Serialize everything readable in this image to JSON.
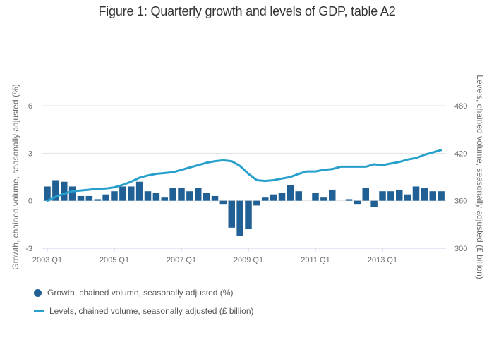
{
  "chart_data": {
    "type": "bar+line",
    "title": "Figure 1: Quarterly growth and levels of GDP, table A2",
    "xlabel": "",
    "ylabel_left": "Growth, chained volume, seasonally adjusted (%)",
    "ylabel_right": "Levels, chained volume, seasonally adjusted (£ billion)",
    "ylim_left": [
      -3,
      6
    ],
    "ylim_right": [
      300,
      480
    ],
    "yticks_left": [
      -3,
      0,
      3,
      6
    ],
    "yticks_right": [
      300,
      360,
      420,
      480
    ],
    "xtick_labels": [
      "2003 Q1",
      "2005 Q1",
      "2007 Q1",
      "2009 Q1",
      "2011 Q1",
      "2013 Q1"
    ],
    "grid": true,
    "legend_position": "bottom-left",
    "colors": {
      "growth": "#206095",
      "levels": "#27a0cc",
      "grid": "#e3e3e3",
      "axis": "#c7d1e4"
    },
    "categories": [
      "2003 Q1",
      "2003 Q2",
      "2003 Q3",
      "2003 Q4",
      "2004 Q1",
      "2004 Q2",
      "2004 Q3",
      "2004 Q4",
      "2005 Q1",
      "2005 Q2",
      "2005 Q3",
      "2005 Q4",
      "2006 Q1",
      "2006 Q2",
      "2006 Q3",
      "2006 Q4",
      "2007 Q1",
      "2007 Q2",
      "2007 Q3",
      "2007 Q4",
      "2008 Q1",
      "2008 Q2",
      "2008 Q3",
      "2008 Q4",
      "2009 Q1",
      "2009 Q2",
      "2009 Q3",
      "2009 Q4",
      "2010 Q1",
      "2010 Q2",
      "2010 Q3",
      "2010 Q4",
      "2011 Q1",
      "2011 Q2",
      "2011 Q3",
      "2011 Q4",
      "2012 Q1",
      "2012 Q2",
      "2012 Q3",
      "2012 Q4",
      "2013 Q1",
      "2013 Q2",
      "2013 Q3",
      "2013 Q4",
      "2014 Q1",
      "2014 Q2",
      "2014 Q3",
      "2014 Q4"
    ],
    "series": [
      {
        "name": "Growth, chained volume, seasonally adjusted (%)",
        "type": "bar",
        "axis": "left",
        "values": [
          0.9,
          1.3,
          1.2,
          0.9,
          0.3,
          0.3,
          0.1,
          0.4,
          0.6,
          0.9,
          0.9,
          1.2,
          0.6,
          0.5,
          0.2,
          0.8,
          0.8,
          0.6,
          0.8,
          0.5,
          0.3,
          -0.2,
          -1.7,
          -2.2,
          -1.8,
          -0.3,
          0.2,
          0.4,
          0.5,
          1.0,
          0.6,
          0.0,
          0.5,
          0.2,
          0.7,
          0.0,
          0.1,
          -0.2,
          0.8,
          -0.4,
          0.6,
          0.6,
          0.7,
          0.4,
          0.9,
          0.8,
          0.6,
          0.6
        ]
      },
      {
        "name": "Levels, chained volume, seasonally adjusted (£ billion)",
        "type": "line",
        "axis": "right",
        "values": [
          360,
          365,
          369,
          372,
          373,
          374,
          375,
          375.5,
          377,
          380,
          384,
          389,
          392,
          394,
          395,
          396,
          399,
          402,
          405,
          408,
          410,
          411,
          410,
          404,
          394,
          386,
          385,
          386,
          388,
          390,
          394,
          397,
          397,
          399,
          400,
          403,
          403,
          403,
          403,
          406,
          405,
          407,
          409,
          412,
          414,
          418,
          421,
          424
        ]
      }
    ]
  },
  "legend": {
    "items": [
      {
        "label": "Growth, chained volume, seasonally adjusted (%)",
        "marker": "circle"
      },
      {
        "label": "Levels, chained volume, seasonally adjusted (£ billion)",
        "marker": "line"
      }
    ]
  }
}
